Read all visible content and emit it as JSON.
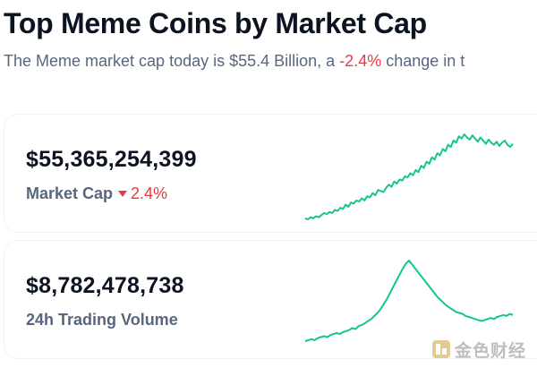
{
  "header": {
    "title": "Top Meme Coins by Market Cap",
    "subtitle_prefix": "The Meme market cap today is $55.4 Billion, a ",
    "subtitle_change": "-2.4%",
    "subtitle_suffix": " change in t"
  },
  "cards": {
    "market_cap": {
      "value": "$55,365,254,399",
      "label": "Market Cap",
      "change": "2.4%",
      "change_direction": "down",
      "sparkline_color": "#16c784"
    },
    "volume": {
      "value": "$8,782,478,738",
      "label": "24h Trading Volume",
      "sparkline_color": "#16c784"
    }
  },
  "colors": {
    "negative": "#ea3943",
    "positive": "#16c784"
  },
  "watermark": {
    "text": "金色财经"
  },
  "chart_data": [
    {
      "type": "line",
      "series": [
        {
          "values": [
            20,
            19,
            21,
            20,
            22,
            21,
            23,
            25,
            24,
            26,
            25,
            28,
            27,
            30,
            29,
            33,
            31,
            35,
            34,
            37,
            36,
            39,
            37,
            41,
            40,
            44,
            42,
            47,
            46,
            45,
            49,
            52,
            50,
            55,
            53,
            57,
            56,
            60,
            59,
            63,
            61,
            66,
            64,
            70,
            68,
            74,
            72,
            78,
            76,
            82,
            80,
            86,
            84,
            90,
            88,
            94,
            92,
            98,
            96,
            100,
            97,
            95,
            99,
            96,
            93,
            97,
            94,
            91,
            95,
            92,
            90,
            93,
            89,
            92,
            94,
            90,
            88,
            91
          ]
        }
      ]
    },
    {
      "type": "line",
      "series": [
        {
          "values": [
            20,
            21,
            22,
            21,
            23,
            24,
            25,
            24,
            26,
            27,
            28,
            27,
            29,
            30,
            31,
            33,
            32,
            35,
            36,
            38,
            40,
            42,
            45,
            48,
            52,
            57,
            62,
            68,
            74,
            80,
            86,
            92,
            97,
            100,
            96,
            92,
            88,
            84,
            80,
            76,
            72,
            68,
            64,
            61,
            58,
            55,
            53,
            51,
            49,
            48,
            47,
            45,
            44,
            43,
            42,
            41,
            40,
            41,
            42,
            43,
            42,
            44,
            45,
            46,
            45,
            47,
            46
          ]
        }
      ]
    }
  ]
}
